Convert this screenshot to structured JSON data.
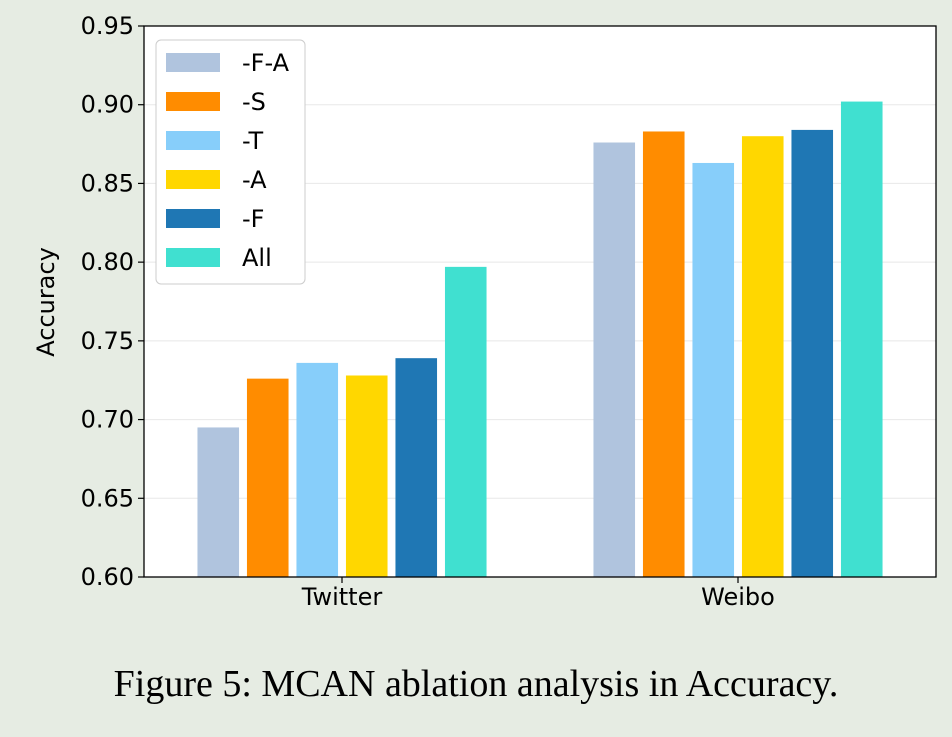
{
  "chart_data": {
    "type": "bar",
    "categories": [
      "Twitter",
      "Weibo"
    ],
    "series": [
      {
        "name": "-F-A",
        "color": "#b0c4de",
        "values": [
          0.695,
          0.876
        ]
      },
      {
        "name": "-S",
        "color": "#ff8c00",
        "values": [
          0.726,
          0.883
        ]
      },
      {
        "name": "-T",
        "color": "#87cefa",
        "values": [
          0.736,
          0.863
        ]
      },
      {
        "name": "-A",
        "color": "#ffd700",
        "values": [
          0.728,
          0.88
        ]
      },
      {
        "name": "-F",
        "color": "#1f77b4",
        "values": [
          0.739,
          0.884
        ]
      },
      {
        "name": "All",
        "color": "#40e0d0",
        "values": [
          0.797,
          0.902
        ]
      }
    ],
    "ylabel": "Accuracy",
    "xlabel": "",
    "ylim": [
      0.6,
      0.95
    ],
    "yticks": [
      "0.60",
      "0.65",
      "0.70",
      "0.75",
      "0.80",
      "0.85",
      "0.90",
      "0.95"
    ],
    "grid": true,
    "legend_position": "top-left"
  },
  "caption": "Figure 5: MCAN ablation analysis in Accuracy."
}
